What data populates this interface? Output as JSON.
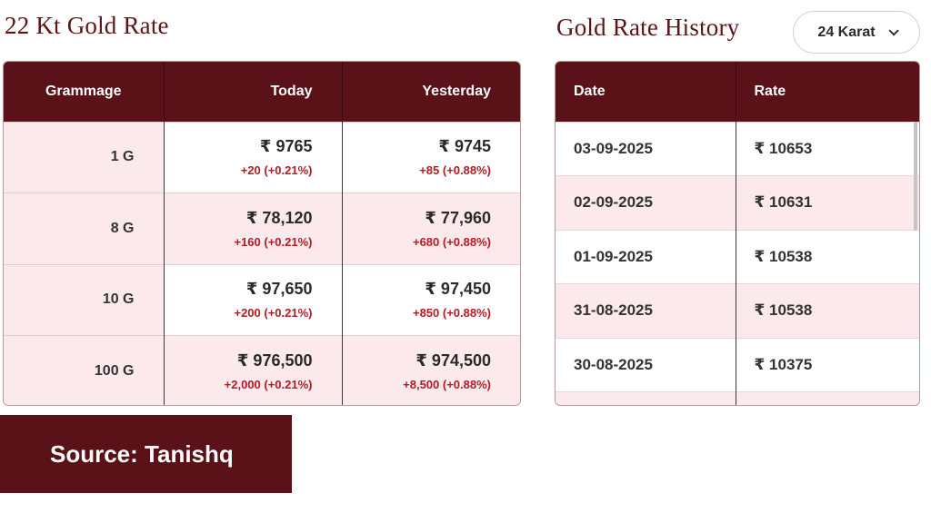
{
  "rate_section": {
    "title": "22 Kt Gold Rate",
    "headers": {
      "grammage": "Grammage",
      "today": "Today",
      "yesterday": "Yesterday"
    },
    "rows": [
      {
        "grammage": "1 G",
        "today_price": "₹ 9765",
        "today_change": "+20 (+0.21%)",
        "yesterday_price": "₹ 9745",
        "yesterday_change": "+85 (+0.88%)"
      },
      {
        "grammage": "8 G",
        "today_price": "₹ 78,120",
        "today_change": "+160 (+0.21%)",
        "yesterday_price": "₹ 77,960",
        "yesterday_change": "+680 (+0.88%)"
      },
      {
        "grammage": "10 G",
        "today_price": "₹ 97,650",
        "today_change": "+200 (+0.21%)",
        "yesterday_price": "₹ 97,450",
        "yesterday_change": "+850 (+0.88%)"
      },
      {
        "grammage": "100 G",
        "today_price": "₹ 976,500",
        "today_change": "+2,000 (+0.21%)",
        "yesterday_price": "₹ 974,500",
        "yesterday_change": "+8,500 (+0.88%)"
      }
    ]
  },
  "history_section": {
    "title": "Gold Rate History",
    "karat_select": {
      "value": "24 Karat",
      "icon": "chevron-down-icon"
    },
    "headers": {
      "date": "Date",
      "rate": "Rate"
    },
    "rows": [
      {
        "date": "03-09-2025",
        "rate": "₹ 10653"
      },
      {
        "date": "02-09-2025",
        "rate": "₹ 10631"
      },
      {
        "date": "01-09-2025",
        "rate": "₹ 10538"
      },
      {
        "date": "31-08-2025",
        "rate": "₹ 10538"
      },
      {
        "date": "30-08-2025",
        "rate": "₹ 10375"
      },
      {
        "date": "",
        "rate": ""
      }
    ]
  },
  "source_banner": {
    "text": "Source: Tanishq"
  },
  "colors": {
    "brand": "#5a1117",
    "row_tint": "#fce9eb",
    "change": "#b41c24"
  }
}
